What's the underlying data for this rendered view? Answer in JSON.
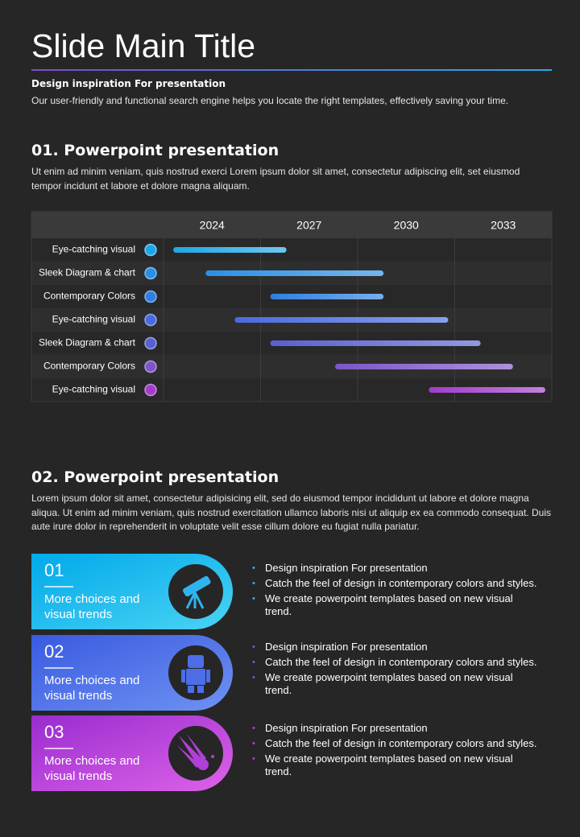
{
  "header": {
    "title": "Slide Main Title",
    "subtitle": "Design inspiration For presentation",
    "text": "Our user-friendly and functional search engine helps you locate the right templates, effectively saving your time."
  },
  "section1": {
    "heading": "01. Powerpoint presentation",
    "text": "Ut enim ad minim veniam, quis nostrud exerci  Lorem ipsum dolor sit amet, consectetur adipiscing elit, set eiusmod tempor incidunt et labore et dolore magna aliquam."
  },
  "chart_data": {
    "type": "gantt",
    "categories": [
      "Eye-catching visual",
      "Sleek Diagram & chart",
      "Contemporary Colors",
      "Eye-catching visual",
      "Sleek Diagram & chart",
      "Contemporary Colors",
      "Eye-catching visual"
    ],
    "start": [
      2022.8,
      2023.8,
      2025.8,
      2024.7,
      2025.8,
      2027.8,
      2030.7
    ],
    "end": [
      2026.3,
      2029.3,
      2029.3,
      2031.3,
      2032.3,
      2033.3,
      2034.3
    ],
    "colors": [
      "#1ea7e8",
      "#2a8fe6",
      "#2f7fe0",
      "#4a6ae0",
      "#5a5fd0",
      "#7d55c8",
      "#a23ccc"
    ],
    "xlim": [
      2022.5,
      2034.5
    ],
    "xticks": [
      2024,
      2027,
      2030,
      2033
    ]
  },
  "section2": {
    "heading": "02. Powerpoint presentation",
    "text": "Lorem ipsum dolor sit amet, consectetur adipisicing elit, sed do eiusmod tempor incididunt ut labore et dolore magna aliqua. Ut enim ad minim veniam, quis nostrud exercitation ullamco laboris nisi ut aliquip ex ea commodo consequat. Duis aute irure dolor in reprehenderit in voluptate velit esse cillum dolore eu fugiat nulla pariatur."
  },
  "cards": [
    {
      "number": "01",
      "label": "More choices and visual trends",
      "bullets": [
        "Design inspiration For presentation",
        "Catch the feel of design in contemporary colors and styles.",
        "We create powerpoint templates based on new visual trend."
      ]
    },
    {
      "number": "02",
      "label": "More choices and visual trends",
      "bullets": [
        "Design inspiration For presentation",
        "Catch the feel of design in contemporary colors and styles.",
        "We create powerpoint templates based on new visual trend."
      ]
    },
    {
      "number": "03",
      "label": "More choices and visual trends",
      "bullets": [
        "Design inspiration For presentation",
        "Catch the feel of design in contemporary colors and styles.",
        "We create powerpoint templates based on new visual trend."
      ]
    }
  ]
}
